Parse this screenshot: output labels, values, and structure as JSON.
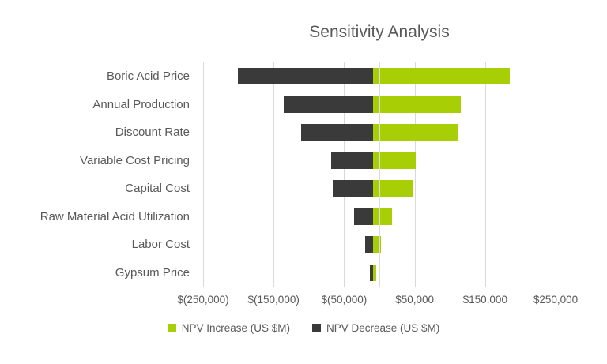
{
  "chart_data": {
    "type": "bar",
    "subtype": "tornado",
    "orientation": "horizontal",
    "title": "Sensitivity Analysis",
    "categories": [
      "Boric Acid Price",
      "Annual Production",
      "Discount Rate",
      "Variable Cost Pricing",
      "Capital Cost",
      "Raw Material Acid Utilization",
      "Labor Cost",
      "Gypsum Price"
    ],
    "series": [
      {
        "name": "NPV Increase (US $M)",
        "color": "#a8cf06",
        "values": [
          194000,
          124500,
          121000,
          60000,
          56500,
          27000,
          11500,
          4500
        ]
      },
      {
        "name": "NPV Decrease (US $M)",
        "color": "#3a3a3a",
        "values": [
          -192000,
          -126500,
          -101500,
          -59500,
          -57500,
          -26500,
          -11000,
          -4500
        ]
      }
    ],
    "xlim": [
      -250000,
      250000
    ],
    "x_tick_values": [
      -250000,
      -150000,
      -50000,
      50000,
      150000,
      250000
    ],
    "x_tick_labels": [
      "$(250,000)",
      "$(150,000)",
      "$(50,000)",
      "$50,000",
      "$150,000",
      "$250,000"
    ],
    "grid": true,
    "legend_position": "bottom",
    "background_color": "#ffffff",
    "text_color": "#595959",
    "gridline_color": "#d9d9d9"
  }
}
